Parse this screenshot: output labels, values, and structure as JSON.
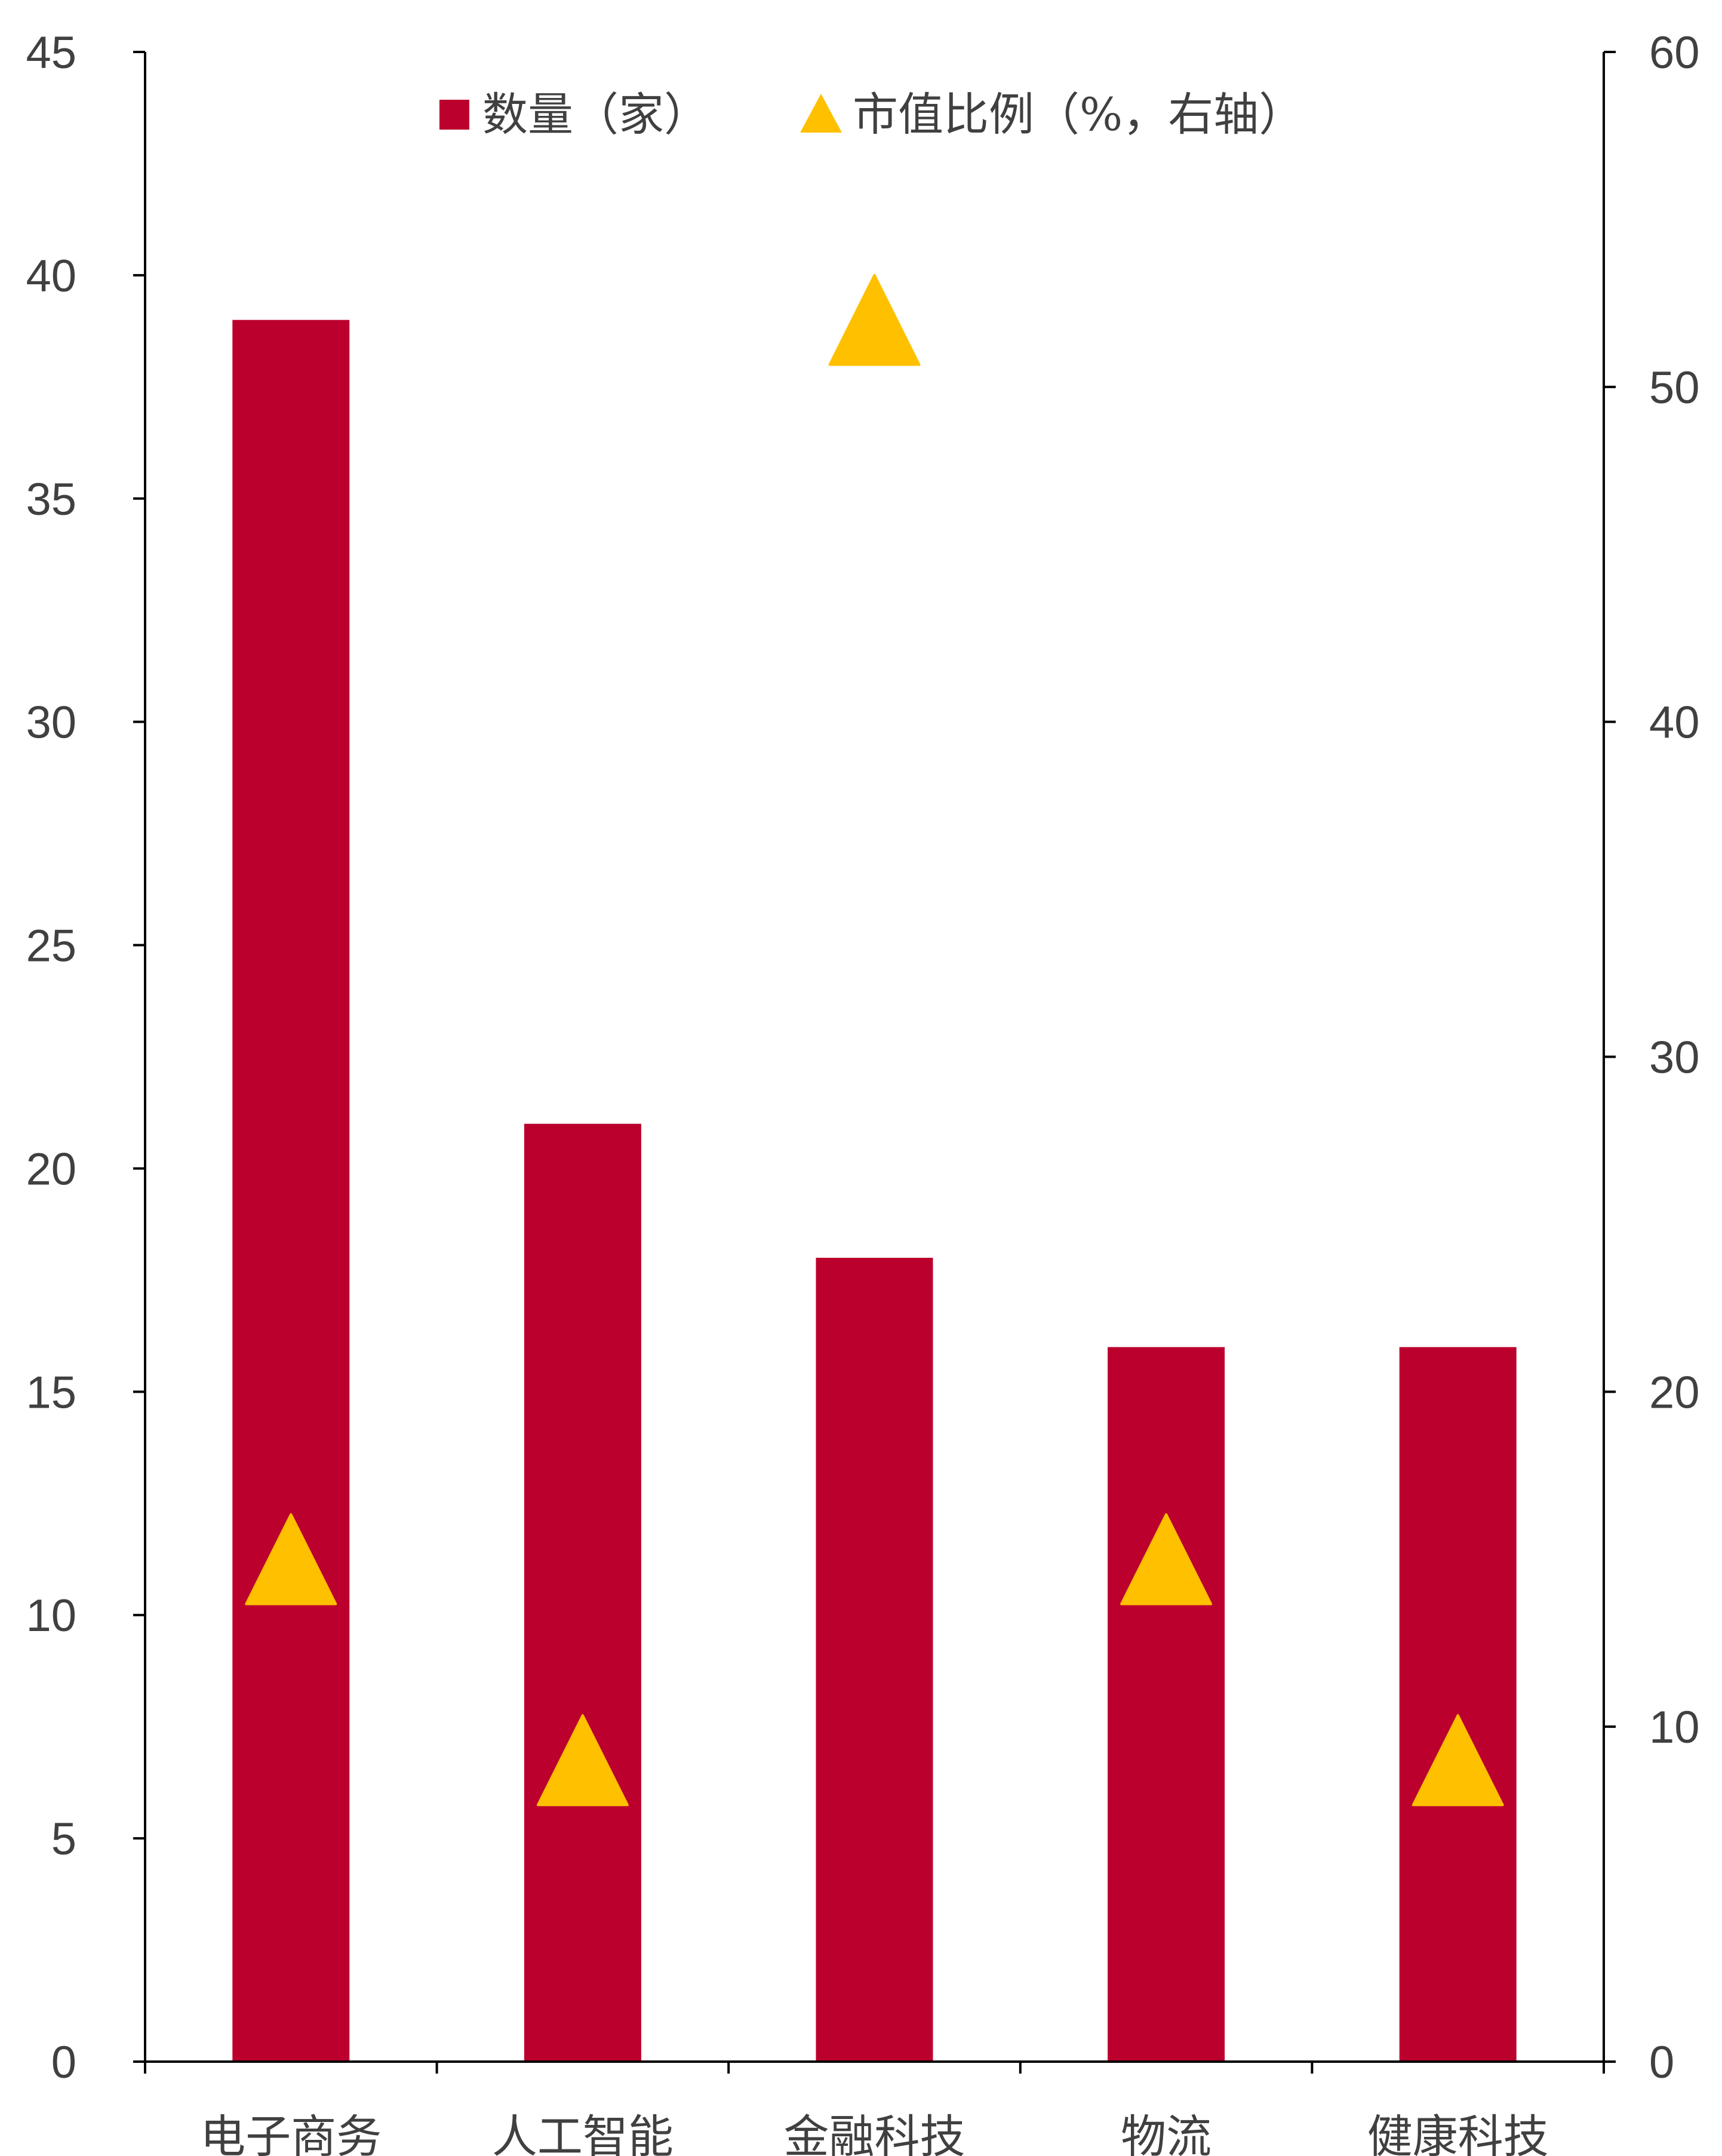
{
  "chart_data": {
    "type": "bar",
    "categories": [
      "电子商务",
      "人工智能",
      "金融科技",
      "物流",
      "健康科技"
    ],
    "series": [
      {
        "name": "数量（家）",
        "type": "bar",
        "axis": "left",
        "color": "#BC002D",
        "values": [
          39,
          21,
          18,
          16,
          16
        ]
      },
      {
        "name": "市值比例（%，右轴）",
        "type": "scatter",
        "marker": "triangle",
        "axis": "right",
        "color": "#FFC000",
        "values": [
          15,
          9,
          52,
          15,
          9
        ]
      }
    ],
    "y_left": {
      "min": 0,
      "max": 45,
      "step": 5,
      "ticks": [
        "0",
        "5",
        "10",
        "15",
        "20",
        "25",
        "30",
        "35",
        "40",
        "45"
      ]
    },
    "y_right": {
      "min": 0,
      "max": 60,
      "step": 10,
      "ticks": [
        "0",
        "10",
        "20",
        "30",
        "40",
        "50",
        "60"
      ]
    },
    "grid": false,
    "legend": {
      "position": "top-center",
      "items": [
        "数量（家）",
        "市值比例（%，右轴）"
      ]
    }
  }
}
